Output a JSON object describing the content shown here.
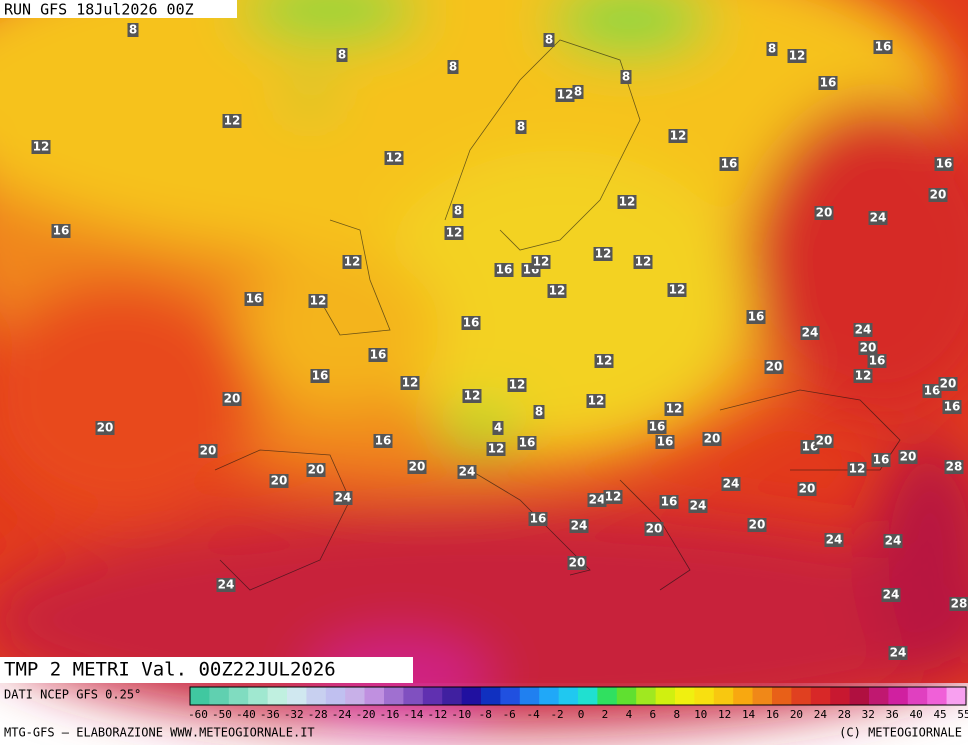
{
  "header": {
    "run": "RUN GFS 18Jul2026 00Z"
  },
  "title": "TMP 2 METRI Val. 00Z22JUL2026",
  "source": "DATI NCEP GFS 0.25°",
  "footer": {
    "left": "MTG-GFS — ELABORAZIONE WWW.METEOGIORNALE.IT",
    "right": "(C) METEOGIORNALE"
  },
  "legend": {
    "labels": [
      -60,
      -50,
      -40,
      -36,
      -32,
      -28,
      -24,
      -20,
      -16,
      -14,
      -12,
      -10,
      -8,
      -6,
      -4,
      -2,
      0,
      2,
      4,
      6,
      8,
      10,
      12,
      14,
      16,
      20,
      24,
      28,
      32,
      36,
      40,
      45,
      55
    ],
    "colors": [
      "#40c8a0",
      "#60d0b0",
      "#80dcc0",
      "#a0e8d0",
      "#c0f0e0",
      "#d0e8f0",
      "#c8d0f0",
      "#c0c0f0",
      "#c8b0e8",
      "#c090e0",
      "#a070d0",
      "#8050c0",
      "#6030b0",
      "#4020a0",
      "#2010a0",
      "#1030c0",
      "#2050e0",
      "#2080f0",
      "#20a8f8",
      "#20c8f0",
      "#20e0d0",
      "#30e060",
      "#60e030",
      "#a0e820",
      "#d0f010",
      "#f0f010",
      "#f8e010",
      "#f8c810",
      "#f8a810",
      "#f08818",
      "#e86018",
      "#e04020",
      "#d82828",
      "#c81830",
      "#b01040",
      "#c01870",
      "#d020a0",
      "#e040c0",
      "#f060d8",
      "#f8a0f0"
    ]
  },
  "map_labels": [
    8,
    8,
    8,
    8,
    8,
    8,
    8,
    12,
    16,
    16,
    12,
    8,
    12,
    12,
    12,
    12,
    16,
    16,
    20,
    12,
    8,
    20,
    24,
    12,
    16,
    12,
    12,
    12,
    16,
    16,
    12,
    12,
    12,
    16,
    12,
    16,
    16,
    24,
    24,
    20,
    16,
    16,
    12,
    20,
    12,
    16,
    12,
    12,
    16,
    20,
    20,
    12,
    12,
    16,
    8,
    12,
    20,
    4,
    16,
    16,
    16,
    20,
    16,
    12,
    16,
    20,
    20,
    16,
    20,
    12,
    28,
    20,
    24,
    20,
    20,
    24,
    20,
    24,
    24,
    12,
    16,
    24,
    16,
    24,
    20,
    20,
    24,
    24,
    20,
    24,
    28,
    24,
    24
  ]
}
